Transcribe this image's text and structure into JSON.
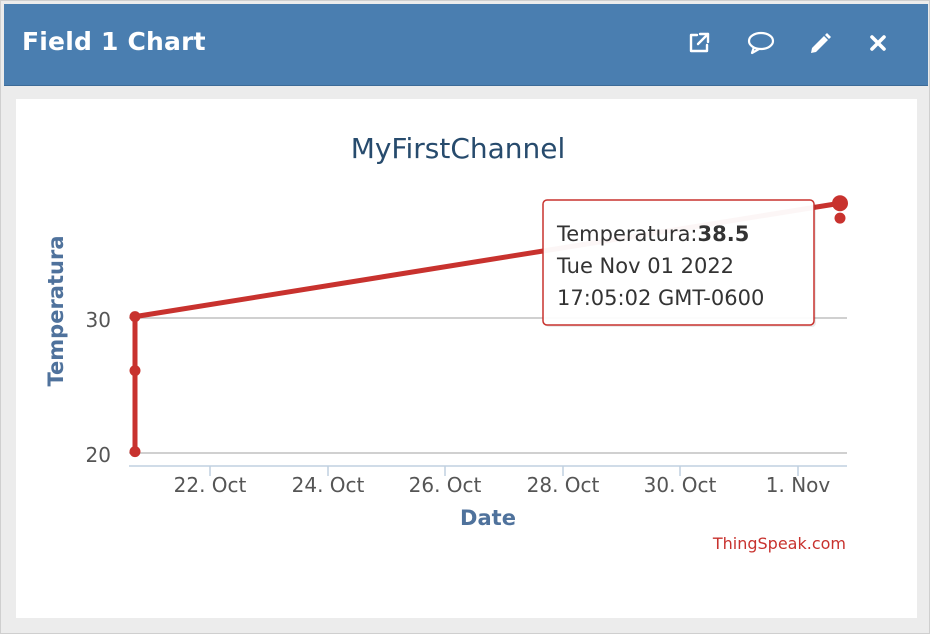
{
  "widget": {
    "title": "Field 1 Chart",
    "icons": [
      "external-link-icon",
      "comment-icon",
      "pencil-icon",
      "close-icon"
    ]
  },
  "colors": {
    "header_bg": "#4a7eb0",
    "series": "#c8322e",
    "axis_title": "#4f729c",
    "credit": "#c8322e"
  },
  "chart_data": {
    "type": "line",
    "title": "MyFirstChannel",
    "xlabel": "Date",
    "ylabel": "Temperatura",
    "x_tick_labels": [
      "22. Oct",
      "24. Oct",
      "26. Oct",
      "28. Oct",
      "30. Oct",
      "1. Nov"
    ],
    "y_tick_labels": [
      "20",
      "30"
    ],
    "ylim": [
      19.9,
      39.3
    ],
    "grid": true,
    "series": [
      {
        "name": "Temperatura",
        "x": [
          "2022-10-20",
          "2022-10-20",
          "2022-10-20",
          "2022-11-01",
          "2022-11-01"
        ],
        "y": [
          20.1,
          26.1,
          30.1,
          38.5,
          37.4
        ]
      }
    ],
    "tooltip": {
      "series_label": "Temperatura:",
      "value": "38.5",
      "line2": "Tue Nov 01 2022",
      "line3": "17:05:02 GMT-0600"
    },
    "credit": "ThingSpeak.com"
  }
}
